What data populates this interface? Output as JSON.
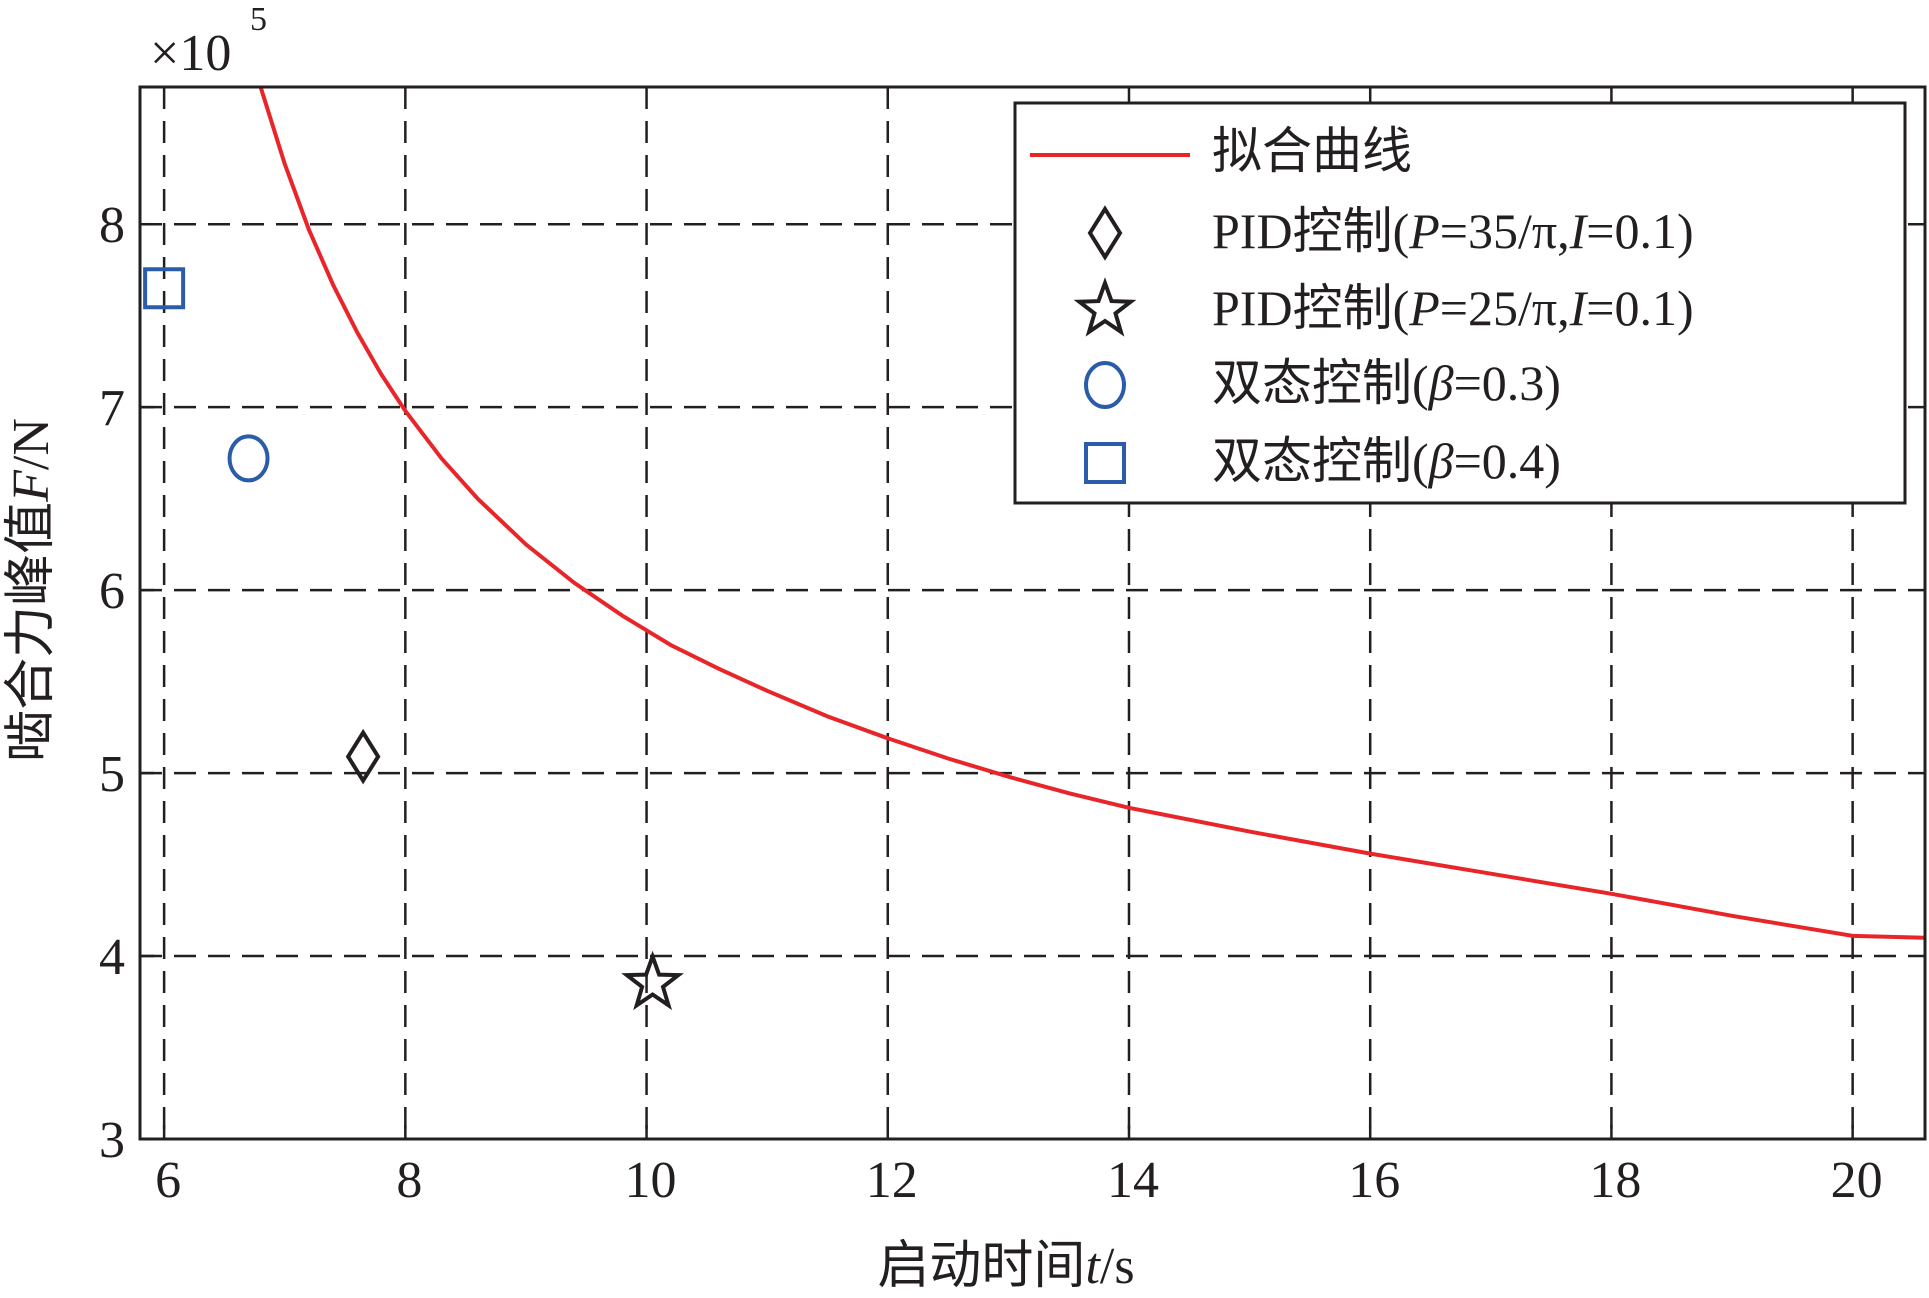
{
  "chart_data": {
    "type": "line",
    "xlabel": "启动时间t/s",
    "xlabel_parts": [
      "启动时间",
      "t",
      "/s"
    ],
    "ylabel": "啮合力峰值F/N",
    "ylabel_parts": [
      "啮合力峰值",
      "F",
      "/N"
    ],
    "y_multiplier": "×10",
    "y_multiplier_exponent": "5",
    "xlim": [
      5.8,
      20.6
    ],
    "ylim": [
      3.0,
      8.75
    ],
    "xticks": [
      6,
      8,
      10,
      12,
      14,
      16,
      18,
      20
    ],
    "xtick_labels": [
      "6",
      "8",
      "10",
      "12",
      "14",
      "16",
      "18",
      "20"
    ],
    "yticks": [
      3,
      4,
      5,
      6,
      7,
      8
    ],
    "ytick_labels": [
      "3",
      "4",
      "5",
      "6",
      "7",
      "8"
    ],
    "grid": true,
    "legend_position": "top-right",
    "series": [
      {
        "name": "拟合曲线",
        "kind": "line",
        "color": "#e8262a",
        "x": [
          6.8,
          7.0,
          7.2,
          7.4,
          7.6,
          7.8,
          8.0,
          8.3,
          8.6,
          9.0,
          9.4,
          9.8,
          10.2,
          10.6,
          11.0,
          11.5,
          12.0,
          12.5,
          13.0,
          13.5,
          14.0,
          15.0,
          16.0,
          17.0,
          18.0,
          19.0,
          20.0,
          20.6
        ],
        "y": [
          8.75,
          8.33,
          7.97,
          7.67,
          7.41,
          7.18,
          6.98,
          6.72,
          6.5,
          6.25,
          6.04,
          5.86,
          5.7,
          5.57,
          5.45,
          5.31,
          5.19,
          5.08,
          4.98,
          4.89,
          4.81,
          4.68,
          4.56,
          4.45,
          4.34,
          4.22,
          4.11,
          4.1
        ]
      },
      {
        "name": "PID控制(P=35/π,I=0.1)",
        "name_parts": [
          "PID控制(",
          "P",
          "=35/π,",
          "I",
          "=0.1)"
        ],
        "kind": "marker",
        "marker": "diamond",
        "color": "#231f20",
        "x": [
          7.65
        ],
        "y": [
          5.09
        ]
      },
      {
        "name": "PID控制(P=25/π,I=0.1)",
        "name_parts": [
          "PID控制(",
          "P",
          "=25/π,",
          "I",
          "=0.1)"
        ],
        "kind": "marker",
        "marker": "star",
        "color": "#231f20",
        "x": [
          10.05
        ],
        "y": [
          3.85
        ]
      },
      {
        "name": "双态控制(β=0.3)",
        "name_parts": [
          "双态控制(",
          "β",
          "=0.3)"
        ],
        "kind": "marker",
        "marker": "circle",
        "color": "#2a5caa",
        "x": [
          6.7
        ],
        "y": [
          6.72
        ]
      },
      {
        "name": "双态控制(β=0.4)",
        "name_parts": [
          "双态控制(",
          "β",
          "=0.4)"
        ],
        "kind": "marker",
        "marker": "square",
        "color": "#2a5caa",
        "x": [
          6.0
        ],
        "y": [
          7.65
        ]
      }
    ]
  }
}
